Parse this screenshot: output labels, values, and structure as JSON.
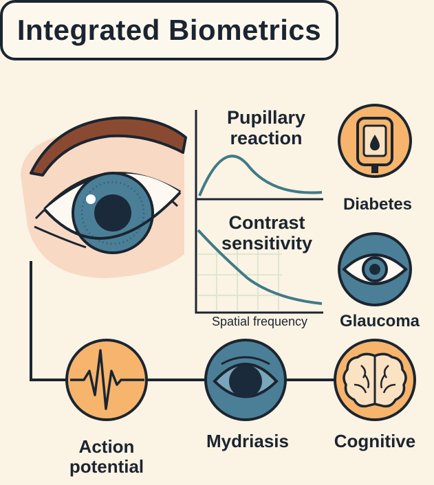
{
  "title": "Integrated Biometrics",
  "panels": {
    "pupillary": "Pupillary reaction",
    "contrast": "Contrast sensitivity",
    "xaxis": "Spatial frequency"
  },
  "conditions": {
    "diabetes": "Diabetes",
    "glaucoma": "Glaucoma"
  },
  "bottom": {
    "action_line1": "Action",
    "action_line2": "potential",
    "mydriasis": "Mydriasis",
    "cognitive": "Cognitive"
  },
  "colors": {
    "ink": "#1b2530",
    "background": "#fbf3e4",
    "orange": "#f6b46c",
    "teal_blue": "#4b7f98",
    "curve": "#3f7b87",
    "skin": "#f8d9c4",
    "brow": "#8a4a32"
  }
}
